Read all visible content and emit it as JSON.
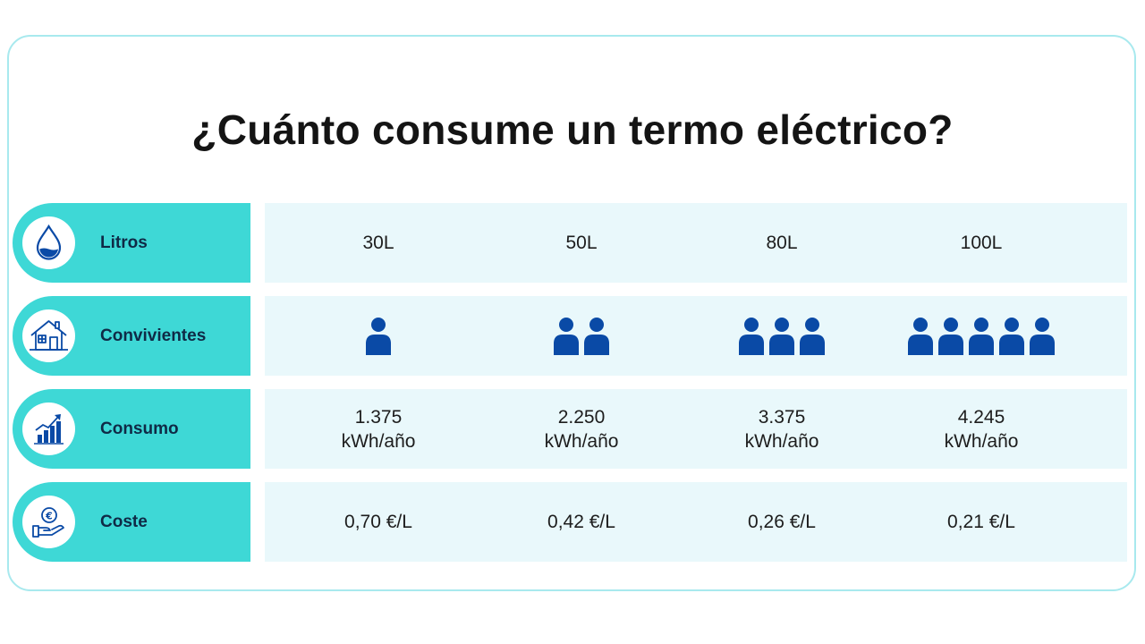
{
  "title": "¿Cuánto consume un termo eléctrico?",
  "colors": {
    "accent": "#3ed8d6",
    "row_background": "#e9f8fb",
    "icon_blue": "#0a4aa6",
    "card_border": "#a8e9ee"
  },
  "rows": [
    {
      "label": "Litros",
      "icon": "water-drop-icon",
      "values": [
        "30L",
        "50L",
        "80L",
        "100L"
      ]
    },
    {
      "label": "Convivientes",
      "icon": "house-icon",
      "people": [
        1,
        2,
        3,
        5
      ]
    },
    {
      "label": "Consumo",
      "icon": "bar-chart-icon",
      "values": [
        {
          "amount": "1.375",
          "unit": "kWh/año"
        },
        {
          "amount": "2.250",
          "unit": "kWh/año"
        },
        {
          "amount": "3.375",
          "unit": "kWh/año"
        },
        {
          "amount": "4.245",
          "unit": "kWh/año"
        }
      ]
    },
    {
      "label": "Coste",
      "icon": "euro-hand-icon",
      "values": [
        "0,70 €/L",
        "0,42 €/L",
        "0,26 €/L",
        "0,21 €/L"
      ]
    }
  ]
}
